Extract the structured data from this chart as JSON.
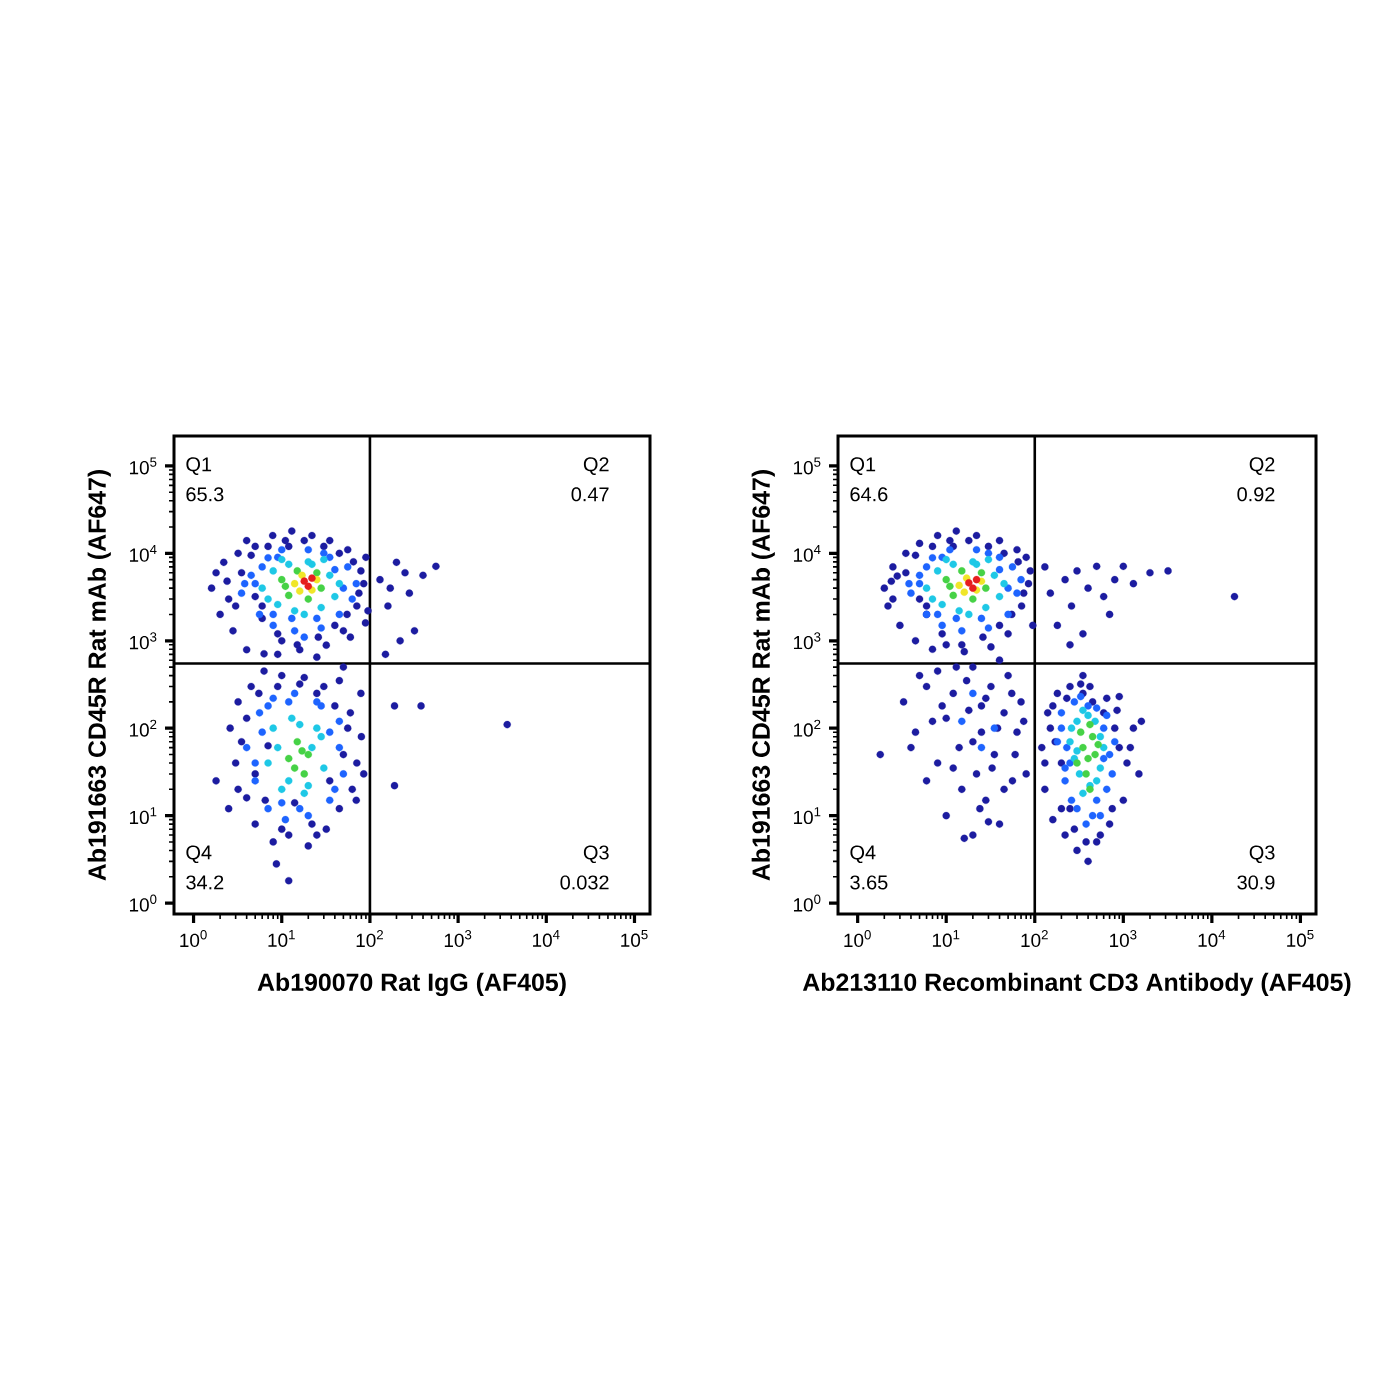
{
  "chart_data": [
    {
      "type": "scatter",
      "log": "xy",
      "marker": "circle",
      "xlabel": "Ab190070 Rat IgG (AF405)",
      "ylabel": "Ab191663 CD45R Rat mAb (AF647)",
      "xlim": [
        0.6,
        150000
      ],
      "ylim": [
        0.75,
        220000
      ],
      "xticks": [
        {
          "value": 1,
          "label": "10$^{0}$"
        },
        {
          "value": 10,
          "label": "10$^{1}$"
        },
        {
          "value": 100,
          "label": "10$^{2}$"
        },
        {
          "value": 1000,
          "label": "10$^{3}$"
        },
        {
          "value": 10000,
          "label": "10$^{4}$"
        },
        {
          "value": 100000,
          "label": "10$^{5}$"
        },
        {
          "value": 2,
          "label": null
        },
        {
          "value": 3,
          "label": null
        },
        {
          "value": 4,
          "label": null
        },
        {
          "value": 5,
          "label": null
        },
        {
          "value": 6,
          "label": null
        },
        {
          "value": 7,
          "label": null
        },
        {
          "value": 8,
          "label": null
        },
        {
          "value": 9,
          "label": null
        },
        {
          "value": 20,
          "label": null
        },
        {
          "value": 30,
          "label": null
        },
        {
          "value": 40,
          "label": null
        },
        {
          "value": 50,
          "label": null
        },
        {
          "value": 60,
          "label": null
        },
        {
          "value": 70,
          "label": null
        },
        {
          "value": 80,
          "label": null
        },
        {
          "value": 90,
          "label": null
        },
        {
          "value": 200,
          "label": null
        },
        {
          "value": 300,
          "label": null
        },
        {
          "value": 400,
          "label": null
        },
        {
          "value": 500,
          "label": null
        },
        {
          "value": 600,
          "label": null
        },
        {
          "value": 700,
          "label": null
        },
        {
          "value": 800,
          "label": null
        },
        {
          "value": 900,
          "label": null
        },
        {
          "value": 2000,
          "label": null
        },
        {
          "value": 3000,
          "label": null
        },
        {
          "value": 4000,
          "label": null
        },
        {
          "value": 5000,
          "label": null
        },
        {
          "value": 6000,
          "label": null
        },
        {
          "value": 7000,
          "label": null
        },
        {
          "value": 8000,
          "label": null
        },
        {
          "value": 9000,
          "label": null
        },
        {
          "value": 20000,
          "label": null
        },
        {
          "value": 30000,
          "label": null
        },
        {
          "value": 40000,
          "label": null
        },
        {
          "value": 50000,
          "label": null
        },
        {
          "value": 60000,
          "label": null
        },
        {
          "value": 70000,
          "label": null
        },
        {
          "value": 80000,
          "label": null
        },
        {
          "value": 90000,
          "label": null
        }
      ],
      "yticks": [
        {
          "value": 1,
          "label": "10$^{0}$"
        },
        {
          "value": 10,
          "label": "10$^{1}$"
        },
        {
          "value": 100,
          "label": "10$^{2}$"
        },
        {
          "value": 1000,
          "label": "10$^{3}$"
        },
        {
          "value": 10000,
          "label": "10$^{4}$"
        },
        {
          "value": 100000,
          "label": "10$^{5}$"
        },
        {
          "value": 2,
          "label": null
        },
        {
          "value": 3,
          "label": null
        },
        {
          "value": 4,
          "label": null
        },
        {
          "value": 5,
          "label": null
        },
        {
          "value": 6,
          "label": null
        },
        {
          "value": 7,
          "label": null
        },
        {
          "value": 8,
          "label": null
        },
        {
          "value": 9,
          "label": null
        },
        {
          "value": 20,
          "label": null
        },
        {
          "value": 30,
          "label": null
        },
        {
          "value": 40,
          "label": null
        },
        {
          "value": 50,
          "label": null
        },
        {
          "value": 60,
          "label": null
        },
        {
          "value": 70,
          "label": null
        },
        {
          "value": 80,
          "label": null
        },
        {
          "value": 90,
          "label": null
        },
        {
          "value": 200,
          "label": null
        },
        {
          "value": 300,
          "label": null
        },
        {
          "value": 400,
          "label": null
        },
        {
          "value": 500,
          "label": null
        },
        {
          "value": 600,
          "label": null
        },
        {
          "value": 700,
          "label": null
        },
        {
          "value": 800,
          "label": null
        },
        {
          "value": 900,
          "label": null
        },
        {
          "value": 2000,
          "label": null
        },
        {
          "value": 3000,
          "label": null
        },
        {
          "value": 4000,
          "label": null
        },
        {
          "value": 5000,
          "label": null
        },
        {
          "value": 6000,
          "label": null
        },
        {
          "value": 7000,
          "label": null
        },
        {
          "value": 8000,
          "label": null
        },
        {
          "value": 9000,
          "label": null
        },
        {
          "value": 20000,
          "label": null
        },
        {
          "value": 30000,
          "label": null
        },
        {
          "value": 40000,
          "label": null
        },
        {
          "value": 50000,
          "label": null
        },
        {
          "value": 60000,
          "label": null
        },
        {
          "value": 70000,
          "label": null
        },
        {
          "value": 80000,
          "label": null
        },
        {
          "value": 90000,
          "label": null
        }
      ],
      "ref_lines": [
        {
          "axis": "x",
          "value": 100
        },
        {
          "axis": "y",
          "value": 550
        }
      ],
      "annotations": [
        "Q1",
        "65.3",
        "Q2",
        "0.47",
        "Q4",
        "34.2",
        "Q3",
        "0.032"
      ],
      "series": [
        {
          "color": "#1c1ca0",
          "x": [
            1.6,
            2,
            2.2,
            2.8,
            3.2,
            4,
            4,
            5,
            6.3,
            7.9,
            10,
            13,
            16,
            22,
            32,
            35,
            50,
            56,
            71,
            79,
            89,
            130,
            160,
            200,
            280,
            400,
            560,
            320,
            220,
            150,
            1.8,
            3,
            90,
            60,
            25,
            12,
            5,
            6,
            170,
            250,
            2.5,
            3.5,
            4.5,
            6,
            7,
            9,
            11,
            15,
            18,
            26,
            30,
            40,
            45,
            55,
            65,
            75,
            85,
            95,
            2.4,
            9,
            2.6,
            3,
            3.2,
            4,
            4.5,
            5,
            6.3,
            7,
            8,
            10,
            12,
            16,
            20,
            25,
            32,
            40,
            45,
            56,
            63,
            71,
            79,
            12,
            8.7,
            1.8,
            190,
            380,
            3600,
            190,
            50,
            2.5,
            3.5,
            4,
            5,
            5.5,
            6.5,
            9,
            10,
            14,
            18,
            22,
            30,
            35,
            50,
            60,
            70,
            80,
            25,
            45,
            3.2,
            85
          ],
          "values": [
            4000,
            2000,
            7900,
            1300,
            10000,
            790,
            14000,
            3200,
            710,
            16000,
            1000,
            18000,
            790,
            16000,
            890,
            14000,
            1300,
            11000,
            2500,
            6300,
            1600,
            5000,
            2500,
            7900,
            3500,
            5600,
            7100,
            1300,
            1000,
            700,
            6000,
            2500,
            9000,
            1100,
            650,
            12000,
            12000,
            1800,
            4000,
            6000,
            3000,
            6000,
            9500,
            2500,
            12000,
            1200,
            14000,
            900,
            14000,
            1100,
            12000,
            1500,
            10000,
            2000,
            8000,
            3500,
            4500,
            2200,
            4800,
            700,
            100,
            40,
            200,
            16,
            300,
            8,
            450,
            63,
            5,
            400,
            6,
            320,
            4.5,
            250,
            7,
            180,
            12,
            100,
            20,
            40,
            250,
            1.8,
            2.8,
            25,
            180,
            180,
            110,
            22,
            500,
            12,
            70,
            130,
            30,
            250,
            15,
            300,
            7,
            14,
            380,
            8,
            300,
            25,
            50,
            150,
            15,
            80,
            6,
            350,
            20,
            30
          ]
        },
        {
          "color": "#1e64ff",
          "x": [
            3.5,
            4.5,
            5.6,
            7,
            8,
            10,
            14,
            20,
            28,
            35,
            45,
            56,
            63,
            70,
            3.8,
            18,
            5,
            6,
            9,
            13,
            25,
            40,
            50,
            30,
            8,
            4,
            5,
            5.6,
            7,
            8,
            11,
            14,
            20,
            28,
            35,
            45,
            50,
            45,
            6,
            5,
            7,
            10,
            16,
            25,
            35,
            40,
            12
          ],
          "values": [
            3500,
            5600,
            2000,
            8900,
            1500,
            11000,
            1300,
            11000,
            1400,
            9000,
            2000,
            7000,
            3000,
            4500,
            4500,
            1100,
            4500,
            7000,
            9000,
            1800,
            1800,
            6500,
            4000,
            10000,
            2000,
            60,
            25,
            150,
            12,
            220,
            9,
            250,
            10,
            180,
            15,
            60,
            30,
            120,
            90,
            40,
            180,
            14,
            12,
            200,
            90,
            20,
            200
          ]
        },
        {
          "color": "#1ec8e6",
          "x": [
            6,
            8,
            9,
            12,
            14,
            22,
            28,
            35,
            40,
            7,
            30,
            10,
            18,
            45,
            20,
            7,
            8,
            10,
            13,
            18,
            25,
            30,
            22,
            9,
            12,
            28,
            16,
            20
          ],
          "values": [
            4000,
            6300,
            2600,
            7500,
            2200,
            7500,
            2400,
            5600,
            3200,
            3000,
            8500,
            8500,
            2000,
            4500,
            8000,
            40,
            100,
            20,
            130,
            18,
            100,
            35,
            60,
            60,
            25,
            80,
            110,
            22
          ]
        },
        {
          "color": "#46d246",
          "x": [
            10,
            12,
            15,
            20,
            25,
            28,
            11,
            12,
            15,
            18,
            20,
            14,
            17
          ],
          "values": [
            5000,
            3300,
            6300,
            3000,
            6000,
            4000,
            4200,
            45,
            70,
            30,
            50,
            35,
            55
          ]
        },
        {
          "color": "#f0e628",
          "x": [
            14,
            17,
            22,
            25,
            16
          ],
          "values": [
            4500,
            5600,
            3800,
            5000,
            3700
          ]
        },
        {
          "color": "#e61e1e",
          "x": [
            18,
            20,
            22
          ],
          "values": [
            4800,
            4200,
            5200
          ]
        }
      ]
    },
    {
      "type": "scatter",
      "log": "xy",
      "marker": "circle",
      "xlabel": "Ab213110 Recombinant CD3 Antibody (AF405)",
      "ylabel": "Ab191663 CD45R Rat mAb (AF647)",
      "xlim": [
        0.6,
        150000
      ],
      "ylim": [
        0.75,
        220000
      ],
      "xticks": [
        {
          "value": 1,
          "label": "10$^{0}$"
        },
        {
          "value": 10,
          "label": "10$^{1}$"
        },
        {
          "value": 100,
          "label": "10$^{2}$"
        },
        {
          "value": 1000,
          "label": "10$^{3}$"
        },
        {
          "value": 10000,
          "label": "10$^{4}$"
        },
        {
          "value": 100000,
          "label": "10$^{5}$"
        },
        {
          "value": 2,
          "label": null
        },
        {
          "value": 3,
          "label": null
        },
        {
          "value": 4,
          "label": null
        },
        {
          "value": 5,
          "label": null
        },
        {
          "value": 6,
          "label": null
        },
        {
          "value": 7,
          "label": null
        },
        {
          "value": 8,
          "label": null
        },
        {
          "value": 9,
          "label": null
        },
        {
          "value": 20,
          "label": null
        },
        {
          "value": 30,
          "label": null
        },
        {
          "value": 40,
          "label": null
        },
        {
          "value": 50,
          "label": null
        },
        {
          "value": 60,
          "label": null
        },
        {
          "value": 70,
          "label": null
        },
        {
          "value": 80,
          "label": null
        },
        {
          "value": 90,
          "label": null
        },
        {
          "value": 200,
          "label": null
        },
        {
          "value": 300,
          "label": null
        },
        {
          "value": 400,
          "label": null
        },
        {
          "value": 500,
          "label": null
        },
        {
          "value": 600,
          "label": null
        },
        {
          "value": 700,
          "label": null
        },
        {
          "value": 800,
          "label": null
        },
        {
          "value": 900,
          "label": null
        },
        {
          "value": 2000,
          "label": null
        },
        {
          "value": 3000,
          "label": null
        },
        {
          "value": 4000,
          "label": null
        },
        {
          "value": 5000,
          "label": null
        },
        {
          "value": 6000,
          "label": null
        },
        {
          "value": 7000,
          "label": null
        },
        {
          "value": 8000,
          "label": null
        },
        {
          "value": 9000,
          "label": null
        },
        {
          "value": 20000,
          "label": null
        },
        {
          "value": 30000,
          "label": null
        },
        {
          "value": 40000,
          "label": null
        },
        {
          "value": 50000,
          "label": null
        },
        {
          "value": 60000,
          "label": null
        },
        {
          "value": 70000,
          "label": null
        },
        {
          "value": 80000,
          "label": null
        },
        {
          "value": 90000,
          "label": null
        }
      ],
      "yticks": [
        {
          "value": 1,
          "label": "10$^{0}$"
        },
        {
          "value": 10,
          "label": "10$^{1}$"
        },
        {
          "value": 100,
          "label": "10$^{2}$"
        },
        {
          "value": 1000,
          "label": "10$^{3}$"
        },
        {
          "value": 10000,
          "label": "10$^{4}$"
        },
        {
          "value": 100000,
          "label": "10$^{5}$"
        },
        {
          "value": 2,
          "label": null
        },
        {
          "value": 3,
          "label": null
        },
        {
          "value": 4,
          "label": null
        },
        {
          "value": 5,
          "label": null
        },
        {
          "value": 6,
          "label": null
        },
        {
          "value": 7,
          "label": null
        },
        {
          "value": 8,
          "label": null
        },
        {
          "value": 9,
          "label": null
        },
        {
          "value": 20,
          "label": null
        },
        {
          "value": 30,
          "label": null
        },
        {
          "value": 40,
          "label": null
        },
        {
          "value": 50,
          "label": null
        },
        {
          "value": 60,
          "label": null
        },
        {
          "value": 70,
          "label": null
        },
        {
          "value": 80,
          "label": null
        },
        {
          "value": 90,
          "label": null
        },
        {
          "value": 200,
          "label": null
        },
        {
          "value": 300,
          "label": null
        },
        {
          "value": 400,
          "label": null
        },
        {
          "value": 500,
          "label": null
        },
        {
          "value": 600,
          "label": null
        },
        {
          "value": 700,
          "label": null
        },
        {
          "value": 800,
          "label": null
        },
        {
          "value": 900,
          "label": null
        },
        {
          "value": 2000,
          "label": null
        },
        {
          "value": 3000,
          "label": null
        },
        {
          "value": 4000,
          "label": null
        },
        {
          "value": 5000,
          "label": null
        },
        {
          "value": 6000,
          "label": null
        },
        {
          "value": 7000,
          "label": null
        },
        {
          "value": 8000,
          "label": null
        },
        {
          "value": 9000,
          "label": null
        },
        {
          "value": 20000,
          "label": null
        },
        {
          "value": 30000,
          "label": null
        },
        {
          "value": 40000,
          "label": null
        },
        {
          "value": 50000,
          "label": null
        },
        {
          "value": 60000,
          "label": null
        },
        {
          "value": 70000,
          "label": null
        },
        {
          "value": 80000,
          "label": null
        },
        {
          "value": 90000,
          "label": null
        }
      ],
      "ref_lines": [
        {
          "axis": "x",
          "value": 100
        },
        {
          "axis": "y",
          "value": 550
        }
      ],
      "annotations": [
        "Q1",
        "64.6",
        "Q2",
        "0.92",
        "Q4",
        "3.65",
        "Q3",
        "30.9"
      ],
      "series": [
        {
          "color": "#1c1ca0",
          "x": [
            2,
            2.2,
            2.5,
            3,
            3.5,
            4.5,
            5,
            5,
            7,
            8,
            10,
            13,
            16,
            22,
            32,
            40,
            50,
            63,
            71,
            89,
            95,
            80,
            2.8,
            6,
            12,
            2.5,
            3.5,
            4.5,
            6,
            7,
            9,
            11,
            15,
            18,
            26,
            30,
            40,
            45,
            55,
            65,
            75,
            85,
            2.4,
            130,
            150,
            180,
            220,
            260,
            300,
            350,
            400,
            500,
            600,
            800,
            1000,
            1300,
            2000,
            3200,
            18000,
            250,
            700,
            3.3,
            4,
            5,
            6,
            7,
            8,
            10,
            12,
            14,
            16,
            18,
            20,
            22,
            25,
            28,
            32,
            35,
            40,
            45,
            50,
            56,
            63,
            70,
            40,
            12,
            9,
            25,
            30,
            1.8,
            4.5,
            6,
            8,
            10,
            13,
            15,
            17,
            20,
            24,
            28,
            33,
            38,
            45,
            55,
            60,
            75,
            80,
            20,
            120,
            130,
            140,
            160,
            180,
            200,
            220,
            250,
            300,
            350,
            400,
            450,
            500,
            600,
            700,
            800,
            1000,
            1200,
            1500,
            900,
            150,
            1600,
            250,
            350,
            130,
            160,
            200,
            230,
            280,
            330,
            380,
            420,
            550,
            650,
            750,
            850,
            1100,
            1300,
            170,
            900
          ],
          "values": [
            4000,
            2500,
            7000,
            1500,
            10000,
            1000,
            13000,
            3000,
            800,
            16000,
            900,
            18000,
            750,
            16000,
            850,
            14000,
            1200,
            11000,
            2500,
            6300,
            1500,
            9000,
            5500,
            2000,
            12000,
            3000,
            6000,
            9500,
            2500,
            12000,
            1200,
            14000,
            900,
            14000,
            1100,
            12000,
            1500,
            10000,
            2000,
            8000,
            3500,
            4500,
            4800,
            7000,
            3500,
            1500,
            5000,
            2500,
            6300,
            1200,
            4000,
            7100,
            3200,
            5000,
            7100,
            4500,
            6000,
            6300,
            3200,
            900,
            2000,
            200,
            60,
            400,
            25,
            120,
            450,
            10,
            250,
            60,
            5.5,
            160,
            500,
            30,
            90,
            15,
            300,
            50,
            8,
            150,
            400,
            25,
            90,
            200,
            600,
            35,
            180,
            180,
            8.5,
            50,
            90,
            300,
            40,
            130,
            500,
            20,
            350,
            70,
            12,
            220,
            35,
            100,
            20,
            250,
            50,
            120,
            30,
            6,
            60,
            20,
            150,
            9,
            250,
            40,
            6,
            300,
            4,
            250,
            3,
            200,
            5,
            150,
            8,
            100,
            15,
            60,
            30,
            230,
            100,
            120,
            12,
            400,
            40,
            180,
            12,
            220,
            7,
            320,
            5,
            300,
            6,
            220,
            12,
            160,
            40,
            100,
            70,
            60
          ]
        },
        {
          "color": "#1e64ff",
          "x": [
            4,
            5,
            6,
            7,
            9,
            11,
            15,
            22,
            30,
            40,
            50,
            56,
            63,
            70,
            3.8,
            5,
            6,
            9,
            13,
            25,
            40,
            50,
            30,
            8,
            15,
            25,
            20,
            35,
            180,
            200,
            220,
            280,
            300,
            400,
            450,
            600,
            650,
            700,
            250,
            500,
            200,
            230,
            260,
            330,
            380,
            500,
            550,
            650,
            750,
            800,
            220,
            600
          ],
          "values": [
            3500,
            5600,
            2000,
            8900,
            1500,
            11000,
            1300,
            11000,
            1400,
            9000,
            2000,
            7000,
            3500,
            5000,
            4500,
            4500,
            7000,
            9000,
            1800,
            1800,
            6500,
            4000,
            10000,
            2000,
            120,
            60,
            250,
            100,
            70,
            150,
            25,
            200,
            12,
            180,
            10,
            100,
            20,
            50,
            40,
            15,
            100,
            60,
            15,
            230,
            8,
            170,
            10,
            140,
            30,
            70,
            35,
            45
          ]
        },
        {
          "color": "#1ec8e6",
          "x": [
            6,
            8,
            9,
            12,
            14,
            22,
            28,
            35,
            40,
            7,
            30,
            10,
            18,
            45,
            20,
            250,
            300,
            320,
            400,
            420,
            550,
            550,
            280,
            260,
            350,
            480,
            600,
            350,
            500,
            300
          ],
          "values": [
            4000,
            6300,
            2600,
            7500,
            2200,
            7500,
            2400,
            5600,
            3200,
            3000,
            8500,
            8500,
            2000,
            4500,
            8000,
            70,
            120,
            30,
            140,
            22,
            80,
            35,
            45,
            100,
            160,
            120,
            60,
            18,
            25,
            55
          ]
        },
        {
          "color": "#46d246",
          "x": [
            10,
            12,
            15,
            20,
            25,
            28,
            11,
            350,
            400,
            450,
            380,
            480,
            330,
            420,
            520,
            300,
            420
          ],
          "values": [
            5000,
            3300,
            6300,
            3000,
            6000,
            4000,
            4200,
            60,
            45,
            80,
            30,
            50,
            90,
            110,
            65,
            40,
            20
          ]
        },
        {
          "color": "#f0e628",
          "x": [
            14,
            17,
            22,
            25,
            16
          ],
          "values": [
            4300,
            5200,
            3800,
            4800,
            3600
          ]
        },
        {
          "color": "#e61e1e",
          "x": [
            18,
            20,
            22
          ],
          "values": [
            4600,
            4000,
            5000
          ]
        }
      ]
    }
  ]
}
